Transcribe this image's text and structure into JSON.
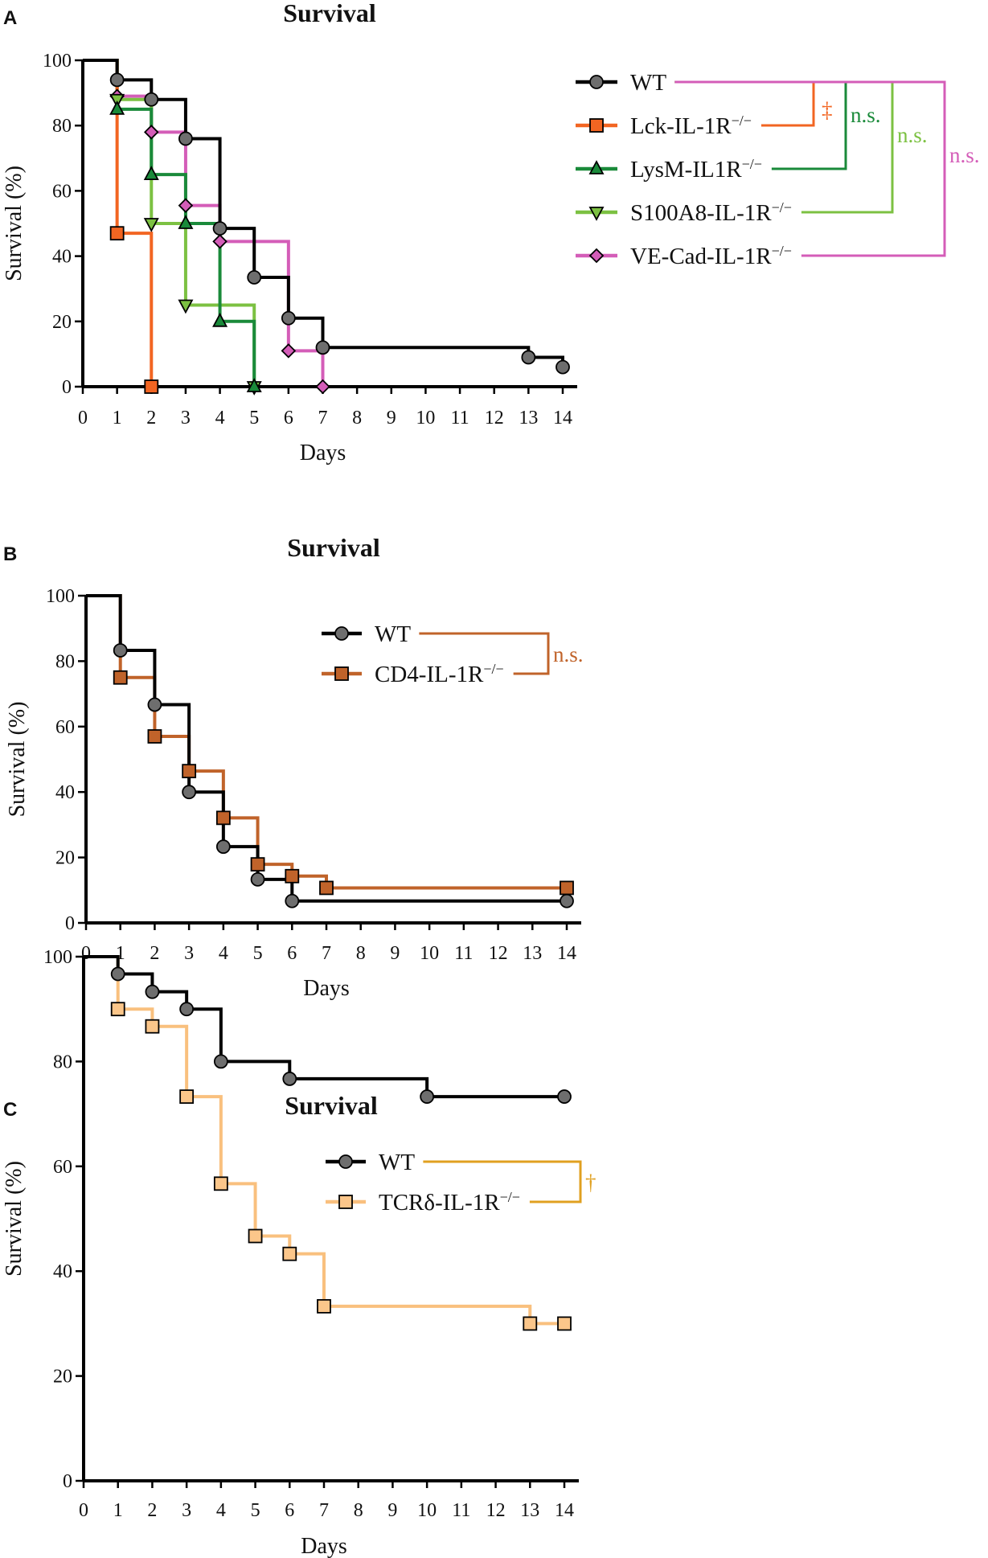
{
  "chart_data": [
    {
      "type": "line",
      "panel": "A",
      "title": "Survival",
      "xlabel": "Days",
      "ylabel": "Survival (%)",
      "xlim": [
        0,
        14
      ],
      "ylim": [
        0,
        100
      ],
      "x_ticks": [
        0,
        1,
        2,
        3,
        4,
        5,
        6,
        7,
        8,
        9,
        10,
        11,
        12,
        13,
        14
      ],
      "y_ticks": [
        0,
        20,
        40,
        60,
        80,
        100
      ],
      "series": [
        {
          "name": "WT",
          "sup": "",
          "color": "#000000",
          "marker": "circle",
          "marker_fill": "#6e6e6e",
          "steps": [
            [
              0,
              100
            ],
            [
              1,
              94
            ],
            [
              2,
              88
            ],
            [
              3,
              76
            ],
            [
              4,
              48.5
            ],
            [
              5,
              33.5
            ],
            [
              6,
              21
            ],
            [
              7,
              12
            ],
            [
              13,
              9
            ],
            [
              14,
              6
            ]
          ],
          "markers": [
            [
              1,
              94
            ],
            [
              2,
              88
            ],
            [
              3,
              76
            ],
            [
              4,
              48.5
            ],
            [
              5,
              33.5
            ],
            [
              6,
              21
            ],
            [
              7,
              12
            ],
            [
              13,
              9
            ],
            [
              14,
              6
            ]
          ]
        },
        {
          "name": "Lck-IL-1R",
          "sup": "−/−",
          "color": "#f26522",
          "marker": "square",
          "marker_fill": "#f26522",
          "steps": [
            [
              0,
              100
            ],
            [
              1,
              47
            ],
            [
              2,
              0
            ]
          ],
          "markers": [
            [
              1,
              47
            ],
            [
              2,
              0
            ]
          ]
        },
        {
          "name": "LysM-IL1R",
          "sup": "−/−",
          "color": "#1a8a3a",
          "marker": "triangle-up",
          "marker_fill": "#1a8a3a",
          "steps": [
            [
              0,
              100
            ],
            [
              1,
              85
            ],
            [
              2,
              65
            ],
            [
              3,
              50
            ],
            [
              4,
              20
            ],
            [
              5,
              0
            ]
          ],
          "markers": [
            [
              1,
              85
            ],
            [
              2,
              65
            ],
            [
              3,
              50
            ],
            [
              4,
              20
            ],
            [
              5,
              0
            ]
          ]
        },
        {
          "name": "S100A8-IL-1R",
          "sup": "−/−",
          "color": "#7cc142",
          "marker": "triangle-down",
          "marker_fill": "#7cc142",
          "steps": [
            [
              0,
              100
            ],
            [
              1,
              88
            ],
            [
              2,
              50
            ],
            [
              3,
              25
            ],
            [
              5,
              0
            ]
          ],
          "markers": [
            [
              1,
              88
            ],
            [
              2,
              50
            ],
            [
              3,
              25
            ],
            [
              5,
              0
            ]
          ]
        },
        {
          "name": "VE-Cad-IL-1R",
          "sup": "−/−",
          "color": "#d45db8",
          "marker": "diamond",
          "marker_fill": "#d45db8",
          "steps": [
            [
              0,
              100
            ],
            [
              1,
              89
            ],
            [
              2,
              78
            ],
            [
              3,
              55.5
            ],
            [
              4,
              44.5
            ],
            [
              6,
              11
            ],
            [
              7,
              0
            ]
          ],
          "markers": [
            [
              1,
              89
            ],
            [
              2,
              78
            ],
            [
              3,
              55.5
            ],
            [
              4,
              44.5
            ],
            [
              6,
              11
            ],
            [
              7,
              0
            ]
          ]
        }
      ],
      "comparisons": [
        {
          "from": "WT",
          "to": "Lck-IL-1R",
          "label": "‡",
          "color": "#f26522"
        },
        {
          "from": "WT",
          "to": "LysM-IL1R",
          "label": "n.s.",
          "color": "#1a8a3a"
        },
        {
          "from": "WT",
          "to": "S100A8-IL-1R",
          "label": "n.s.",
          "color": "#7cc142"
        },
        {
          "from": "WT",
          "to": "VE-Cad-IL-1R",
          "label": "n.s.",
          "color": "#d45db8"
        }
      ]
    },
    {
      "type": "line",
      "panel": "B",
      "title": "Survival",
      "xlabel": "Days",
      "ylabel": "Survival (%)",
      "xlim": [
        0,
        14
      ],
      "ylim": [
        0,
        100
      ],
      "x_ticks": [
        0,
        1,
        2,
        3,
        4,
        5,
        6,
        7,
        8,
        9,
        10,
        11,
        12,
        13,
        14
      ],
      "y_ticks": [
        0,
        20,
        40,
        60,
        80,
        100
      ],
      "series": [
        {
          "name": "WT",
          "sup": "",
          "color": "#000000",
          "marker": "circle",
          "marker_fill": "#6e6e6e",
          "steps": [
            [
              0,
              100
            ],
            [
              1,
              83.3
            ],
            [
              2,
              66.7
            ],
            [
              3,
              40
            ],
            [
              4,
              23.3
            ],
            [
              5,
              13.3
            ],
            [
              6,
              6.7
            ],
            [
              14,
              6.7
            ]
          ],
          "markers": [
            [
              1,
              83.3
            ],
            [
              2,
              66.7
            ],
            [
              3,
              40
            ],
            [
              4,
              23.3
            ],
            [
              5,
              13.3
            ],
            [
              6,
              6.7
            ],
            [
              14,
              6.7
            ]
          ]
        },
        {
          "name": "CD4-IL-1R",
          "sup": "−/−",
          "color": "#c0632a",
          "marker": "square",
          "marker_fill": "#c0632a",
          "steps": [
            [
              0,
              100
            ],
            [
              1,
              75
            ],
            [
              2,
              57
            ],
            [
              3,
              46.4
            ],
            [
              4,
              32.1
            ],
            [
              5,
              17.9
            ],
            [
              6,
              14.3
            ],
            [
              7,
              10.7
            ],
            [
              14,
              10.7
            ]
          ],
          "markers": [
            [
              1,
              75
            ],
            [
              2,
              57
            ],
            [
              3,
              46.4
            ],
            [
              4,
              32.1
            ],
            [
              5,
              17.9
            ],
            [
              6,
              14.3
            ],
            [
              7,
              10.7
            ],
            [
              14,
              10.7
            ]
          ]
        }
      ],
      "comparisons": [
        {
          "from": "WT",
          "to": "CD4-IL-1R",
          "label": "n.s.",
          "color": "#c0632a"
        }
      ]
    },
    {
      "type": "line",
      "panel": "C",
      "title": "Survival",
      "xlabel": "Days",
      "ylabel": "Survival (%)",
      "xlim": [
        0,
        14
      ],
      "ylim": [
        0,
        100
      ],
      "x_ticks": [
        0,
        1,
        2,
        3,
        4,
        5,
        6,
        7,
        8,
        9,
        10,
        11,
        12,
        13,
        14
      ],
      "y_ticks": [
        0,
        20,
        40,
        60,
        80,
        100
      ],
      "series": [
        {
          "name": "WT",
          "sup": "",
          "color": "#000000",
          "marker": "circle",
          "marker_fill": "#6e6e6e",
          "steps": [
            [
              0,
              100
            ],
            [
              1,
              96.7
            ],
            [
              2,
              93.3
            ],
            [
              3,
              90
            ],
            [
              4,
              80
            ],
            [
              6,
              76.7
            ],
            [
              10,
              73.3
            ],
            [
              14,
              73.3
            ]
          ],
          "markers": [
            [
              1,
              96.7
            ],
            [
              2,
              93.3
            ],
            [
              3,
              90
            ],
            [
              4,
              80
            ],
            [
              6,
              76.7
            ],
            [
              10,
              73.3
            ],
            [
              14,
              73.3
            ]
          ]
        },
        {
          "name": "TCRδ-IL-1R",
          "sup": "−/−",
          "color": "#f9c07e",
          "marker": "square",
          "marker_fill": "#fbc68a",
          "steps": [
            [
              0,
              100
            ],
            [
              1,
              90
            ],
            [
              2,
              86.7
            ],
            [
              3,
              73.3
            ],
            [
              4,
              56.7
            ],
            [
              5,
              46.7
            ],
            [
              6,
              43.3
            ],
            [
              7,
              33.3
            ],
            [
              13,
              30
            ],
            [
              14,
              30
            ]
          ],
          "markers": [
            [
              1,
              90
            ],
            [
              2,
              86.7
            ],
            [
              3,
              73.3
            ],
            [
              4,
              56.7
            ],
            [
              5,
              46.7
            ],
            [
              6,
              43.3
            ],
            [
              7,
              33.3
            ],
            [
              13,
              30
            ],
            [
              14,
              30
            ]
          ]
        }
      ],
      "comparisons": [
        {
          "from": "WT",
          "to": "TCRδ-IL-1R",
          "label": "†",
          "color": "#e0a020"
        }
      ]
    }
  ]
}
